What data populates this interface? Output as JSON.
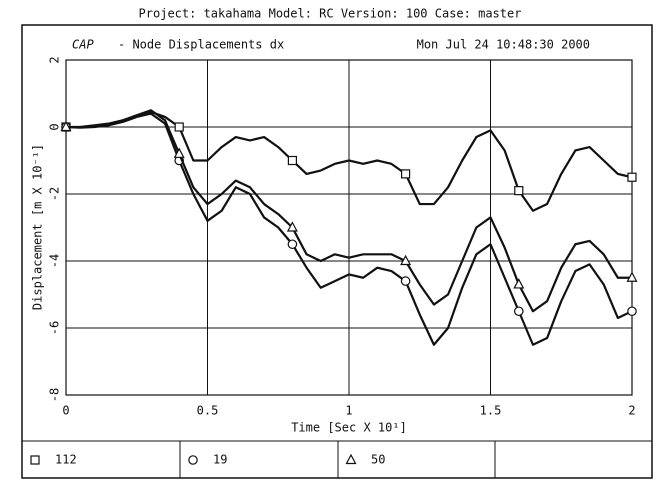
{
  "chart_data": {
    "type": "line",
    "suptitle": "Project: takahama  Model: RC  Version: 100  Case: master",
    "logo": "CAP",
    "title": "- Node Displacements dx",
    "timestamp": "Mon Jul 24 10:48:30 2000",
    "xlabel": "Time [Sec X 10¹]",
    "ylabel": "Displacement [m X 10⁻¹]",
    "x": [
      0,
      0.05,
      0.1,
      0.15,
      0.2,
      0.25,
      0.3,
      0.35,
      0.4,
      0.45,
      0.5,
      0.55,
      0.6,
      0.65,
      0.7,
      0.75,
      0.8,
      0.85,
      0.9,
      0.95,
      1,
      1.05,
      1.1,
      1.15,
      1.2,
      1.25,
      1.3,
      1.35,
      1.4,
      1.45,
      1.5,
      1.55,
      1.6,
      1.65,
      1.7,
      1.75,
      1.8,
      1.85,
      1.9,
      1.95,
      2
    ],
    "series": [
      {
        "name": "112",
        "marker": "square",
        "color": "#111111",
        "values": [
          0,
          0,
          0.05,
          0.1,
          0.2,
          0.35,
          0.45,
          0.3,
          0,
          -1.0,
          -1.0,
          -0.6,
          -0.3,
          -0.4,
          -0.3,
          -0.6,
          -1.0,
          -1.4,
          -1.3,
          -1.1,
          -1.0,
          -1.1,
          -1.0,
          -1.1,
          -1.4,
          -2.3,
          -2.3,
          -1.8,
          -1.0,
          -0.3,
          -0.1,
          -0.7,
          -1.9,
          -2.5,
          -2.3,
          -1.4,
          -0.7,
          -0.6,
          -1.0,
          -1.4,
          -1.5
        ]
      },
      {
        "name": "19",
        "marker": "circle",
        "color": "#111111",
        "values": [
          0,
          -0.02,
          0,
          0.05,
          0.15,
          0.3,
          0.4,
          0.1,
          -1.0,
          -2.0,
          -2.8,
          -2.5,
          -1.8,
          -2.0,
          -2.7,
          -3.0,
          -3.5,
          -4.2,
          -4.8,
          -4.6,
          -4.4,
          -4.5,
          -4.2,
          -4.3,
          -4.6,
          -5.6,
          -6.5,
          -6.0,
          -4.8,
          -3.8,
          -3.5,
          -4.5,
          -5.5,
          -6.5,
          -6.3,
          -5.2,
          -4.3,
          -4.1,
          -4.7,
          -5.7,
          -5.5
        ]
      },
      {
        "name": "50",
        "marker": "triangle",
        "color": "#111111",
        "values": [
          0,
          -0.01,
          0.02,
          0.08,
          0.18,
          0.35,
          0.5,
          0.2,
          -0.8,
          -1.8,
          -2.3,
          -2.0,
          -1.6,
          -1.8,
          -2.3,
          -2.6,
          -3.0,
          -3.8,
          -4.0,
          -3.8,
          -3.9,
          -3.8,
          -3.8,
          -3.8,
          -4.0,
          -4.7,
          -5.3,
          -5.0,
          -4.0,
          -3.0,
          -2.7,
          -3.6,
          -4.7,
          -5.5,
          -5.2,
          -4.2,
          -3.5,
          -3.4,
          -3.8,
          -4.5,
          -4.5
        ]
      }
    ],
    "xlim": [
      0,
      2
    ],
    "xticks": [
      0,
      0.5,
      1,
      1.5,
      2
    ],
    "ylim": [
      -8,
      2
    ],
    "yticks": [
      2,
      0,
      -2,
      -4,
      -6,
      -8
    ],
    "grid": true
  }
}
